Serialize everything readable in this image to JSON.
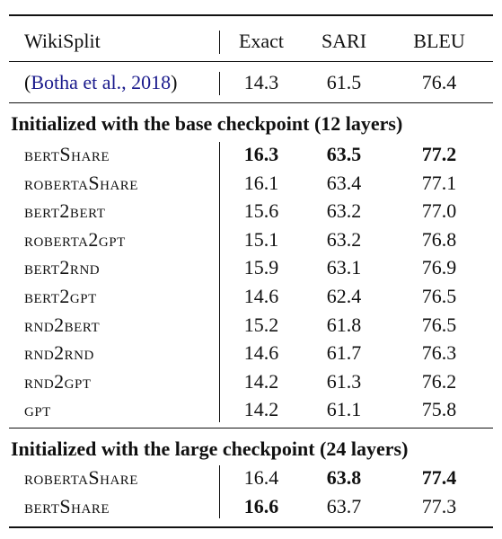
{
  "header": {
    "dataset": "WikiSplit",
    "col1": "Exact",
    "col2": "SARI",
    "col3": "BLEU"
  },
  "baseline": {
    "open_paren": "(",
    "name": "Botha et al., 2018",
    "close_paren": ")",
    "exact": "14.3",
    "sari": "61.5",
    "bleu": "76.4"
  },
  "sections": [
    {
      "title": "Initialized with the base checkpoint (12 layers)",
      "rows": [
        {
          "model": "bertShare",
          "exact": "16.3",
          "sari": "63.5",
          "bleu": "77.2",
          "bold": [
            true,
            true,
            true
          ]
        },
        {
          "model": "robertaShare",
          "exact": "16.1",
          "sari": "63.4",
          "bleu": "77.1",
          "bold": [
            false,
            false,
            false
          ]
        },
        {
          "model": "bert2bert",
          "exact": "15.6",
          "sari": "63.2",
          "bleu": "77.0",
          "bold": [
            false,
            false,
            false
          ]
        },
        {
          "model": "roberta2gpt",
          "exact": "15.1",
          "sari": "63.2",
          "bleu": "76.8",
          "bold": [
            false,
            false,
            false
          ]
        },
        {
          "model": "bert2rnd",
          "exact": "15.9",
          "sari": "63.1",
          "bleu": "76.9",
          "bold": [
            false,
            false,
            false
          ]
        },
        {
          "model": "bert2gpt",
          "exact": "14.6",
          "sari": "62.4",
          "bleu": "76.5",
          "bold": [
            false,
            false,
            false
          ]
        },
        {
          "model": "rnd2bert",
          "exact": "15.2",
          "sari": "61.8",
          "bleu": "76.5",
          "bold": [
            false,
            false,
            false
          ]
        },
        {
          "model": "rnd2rnd",
          "exact": "14.6",
          "sari": "61.7",
          "bleu": "76.3",
          "bold": [
            false,
            false,
            false
          ]
        },
        {
          "model": "rnd2gpt",
          "exact": "14.2",
          "sari": "61.3",
          "bleu": "76.2",
          "bold": [
            false,
            false,
            false
          ]
        },
        {
          "model": "gpt",
          "exact": "14.2",
          "sari": "61.1",
          "bleu": "75.8",
          "bold": [
            false,
            false,
            false
          ]
        }
      ]
    },
    {
      "title": "Initialized with the large checkpoint (24 layers)",
      "rows": [
        {
          "model": "robertaShare",
          "exact": "16.4",
          "sari": "63.8",
          "bleu": "77.4",
          "bold": [
            false,
            true,
            true
          ]
        },
        {
          "model": "bertShare",
          "exact": "16.6",
          "sari": "63.7",
          "bleu": "77.3",
          "bold": [
            true,
            false,
            false
          ]
        }
      ]
    }
  ]
}
